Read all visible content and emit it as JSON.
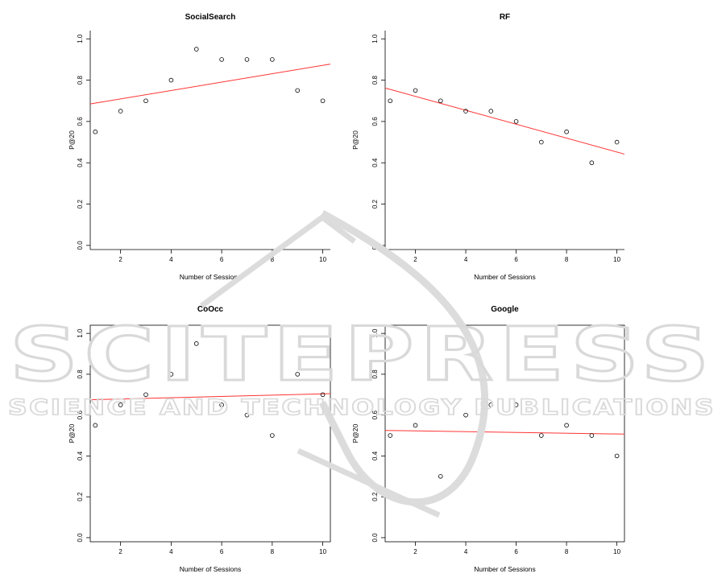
{
  "watermark": {
    "main": "SCITEPRESS",
    "sub": "SCIENCE AND TECHNOLOGY PUBLICATIONS"
  },
  "chart_data": [
    {
      "type": "scatter",
      "title": "SocialSearch",
      "xlabel": "Number of Sessions",
      "ylabel": "P@20",
      "x": [
        1,
        2,
        3,
        4,
        5,
        6,
        7,
        8,
        9,
        10
      ],
      "y": [
        0.55,
        0.65,
        0.7,
        0.8,
        0.95,
        0.9,
        0.9,
        0.9,
        0.75,
        0.7
      ],
      "fit_line": {
        "color": "#ff3333",
        "from": [
          0.8,
          0.685
        ],
        "to": [
          10.3,
          0.878
        ]
      },
      "xlim": [
        0.8,
        10.3
      ],
      "ylim": [
        -0.02,
        1.04
      ],
      "xticks": [
        2,
        4,
        6,
        8,
        10
      ],
      "yticks": [
        0.0,
        0.2,
        0.4,
        0.6,
        0.8,
        1.0
      ],
      "ytick_labels": [
        "0.0",
        "0.2",
        "0.4",
        "0.6",
        "0.8",
        "1.0"
      ],
      "grid": false,
      "box": "partial"
    },
    {
      "type": "scatter",
      "title": "RF",
      "xlabel": "Number of Sessions",
      "ylabel": "P@20",
      "x": [
        1,
        2,
        3,
        4,
        5,
        6,
        7,
        8,
        9,
        10
      ],
      "y": [
        0.7,
        0.75,
        0.7,
        0.65,
        0.65,
        0.6,
        0.5,
        0.55,
        0.4,
        0.5
      ],
      "fit_line": {
        "color": "#ff3333",
        "from": [
          0.8,
          0.762
        ],
        "to": [
          10.3,
          0.442
        ]
      },
      "xlim": [
        0.8,
        10.3
      ],
      "ylim": [
        -0.02,
        1.04
      ],
      "xticks": [
        2,
        4,
        6,
        8,
        10
      ],
      "yticks": [
        0.0,
        0.2,
        0.4,
        0.6,
        0.8,
        1.0
      ],
      "ytick_labels": [
        "0.0",
        "0.2",
        "0.4",
        "0.6",
        "0.8",
        "1.0"
      ],
      "grid": false,
      "box": "partial"
    },
    {
      "type": "scatter",
      "title": "CoOcc",
      "xlabel": "Number of Sessions",
      "ylabel": "P@20",
      "x": [
        1,
        2,
        3,
        4,
        5,
        6,
        7,
        8,
        9,
        10
      ],
      "y": [
        0.55,
        0.65,
        0.7,
        0.8,
        0.95,
        0.65,
        0.6,
        0.5,
        0.8,
        0.7
      ],
      "fit_line": {
        "color": "#ff3333",
        "from": [
          0.8,
          0.675
        ],
        "to": [
          10.3,
          0.705
        ]
      },
      "xlim": [
        0.8,
        10.3
      ],
      "ylim": [
        -0.02,
        1.04
      ],
      "xticks": [
        2,
        4,
        6,
        8,
        10
      ],
      "yticks": [
        0.0,
        0.2,
        0.4,
        0.6,
        0.8,
        1.0
      ],
      "ytick_labels": [
        "0.0",
        "0.2",
        "0.4",
        "0.6",
        "0.8",
        "1.0"
      ],
      "grid": false,
      "box": "full"
    },
    {
      "type": "scatter",
      "title": "Google",
      "xlabel": "Number of Sessions",
      "ylabel": "P@20",
      "x": [
        1,
        2,
        3,
        4,
        5,
        6,
        7,
        8,
        9,
        10
      ],
      "y": [
        0.5,
        0.55,
        0.3,
        0.6,
        0.65,
        0.65,
        0.5,
        0.55,
        0.5,
        0.4
      ],
      "fit_line": {
        "color": "#ff3333",
        "from": [
          0.8,
          0.525
        ],
        "to": [
          10.3,
          0.507
        ]
      },
      "xlim": [
        0.8,
        10.3
      ],
      "ylim": [
        -0.02,
        1.04
      ],
      "xticks": [
        2,
        4,
        6,
        8,
        10
      ],
      "yticks": [
        0.0,
        0.2,
        0.4,
        0.6,
        0.8,
        1.0
      ],
      "ytick_labels": [
        "0.0",
        "0.2",
        "0.4",
        "0.6",
        "0.8",
        "1.0"
      ],
      "grid": false,
      "box": "full"
    }
  ]
}
